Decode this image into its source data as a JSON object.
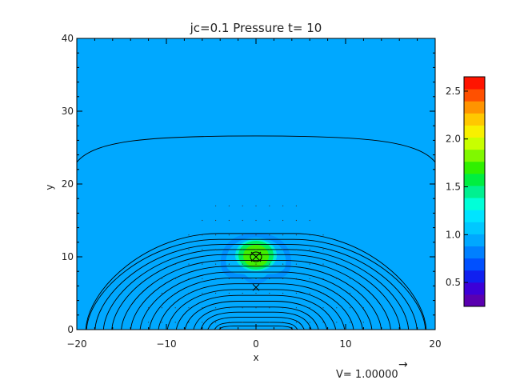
{
  "chart_data": {
    "type": "heatmap",
    "title": "jc=0.1 Pressure t= 10",
    "xlabel": "x",
    "ylabel": "y",
    "xlim": [
      -20,
      20
    ],
    "ylim": [
      0,
      40
    ],
    "x_ticks": [
      -20,
      -10,
      0,
      10,
      20
    ],
    "y_ticks": [
      0,
      10,
      20,
      30,
      40
    ],
    "x_tick_labels": [
      "−20",
      "−10",
      "0",
      "10",
      "20"
    ],
    "y_tick_labels": [
      "0",
      "10",
      "20",
      "30",
      "40"
    ],
    "background_level": 0.9,
    "pressure_peak": {
      "x": 0,
      "y": 10,
      "value": 1.7
    },
    "colorbar": {
      "min": 0.25,
      "max": 2.65,
      "ticks": [
        0.5,
        1.0,
        1.5,
        2.0,
        2.5
      ],
      "tick_labels": [
        "0.5",
        "1.0",
        "1.5",
        "2.0",
        "2.5"
      ],
      "colors": [
        "#5a00b0",
        "#3c00d8",
        "#1020f0",
        "#0050ff",
        "#0080ff",
        "#00a8ff",
        "#00c8ff",
        "#00e4ff",
        "#00ffd8",
        "#00f090",
        "#00ee40",
        "#30f000",
        "#80f800",
        "#c8ff00",
        "#f8f000",
        "#ffc800",
        "#ff9400",
        "#ff5000",
        "#ff1400"
      ]
    },
    "field_line_heights_at_x0": [
      26.6,
      13.2,
      12.4,
      11.7,
      11.0,
      10.3,
      9.5,
      8.7,
      7.9,
      7.1,
      6.3,
      5.5,
      4.7,
      3.9,
      3.1,
      2.4,
      1.7,
      1.0,
      0.5
    ],
    "o_point": {
      "x": 0,
      "y": 10
    },
    "x_point": {
      "x": 0,
      "y": 5.8
    },
    "vector_legend": {
      "label": "V= 1.00000",
      "arrow": "→"
    }
  }
}
